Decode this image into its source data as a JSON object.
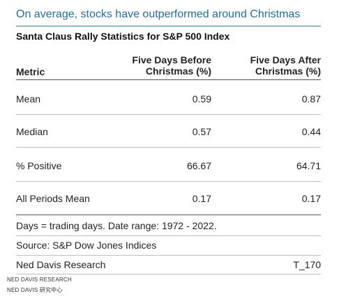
{
  "headline": "On average, stocks have outperformed around Christmas",
  "subtitle": "Santa Claus Rally Statistics for S&P 500 Index",
  "table": {
    "columns": [
      "Metric",
      "Five Days Before\nChristmas (%)",
      "Five Days After\nChristmas (%)"
    ],
    "column_lines": {
      "metric": "Metric",
      "before_line1": "Five Days Before",
      "before_line2": "Christmas (%)",
      "after_line1": "Five Days After",
      "after_line2": "Christmas (%)"
    },
    "rows": [
      {
        "metric": "Mean",
        "before": "0.59",
        "after": "0.87"
      },
      {
        "metric": "Median",
        "before": "0.57",
        "after": "0.44"
      },
      {
        "metric": "% Positive",
        "before": "66.67",
        "after": "64.71"
      },
      {
        "metric": "All Periods Mean",
        "before": "0.17",
        "after": "0.17"
      }
    ]
  },
  "notes": {
    "days": "Days = trading days. Date range: 1972 - 2022.",
    "source": "Source: S&P Dow Jones Indices",
    "publisher": "Ned Davis Research",
    "code": "T_170"
  },
  "watermark": {
    "line1": "NED DAVIS RESEARCH",
    "line2": "NED DAVIS 研究中心"
  },
  "colors": {
    "headline": "#1f6fa0",
    "rule": "#2b7fb0"
  }
}
